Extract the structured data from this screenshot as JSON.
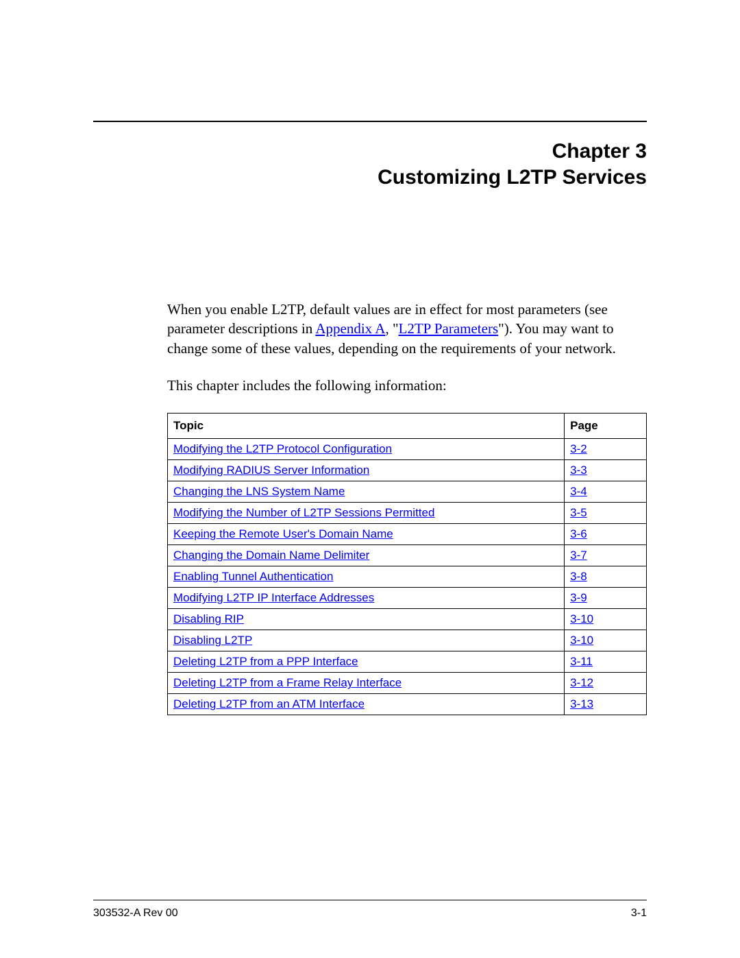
{
  "heading": {
    "chapter_label": "Chapter 3",
    "title": "Customizing L2TP Services"
  },
  "intro": {
    "paragraph_before_link1": "When you enable L2TP, default values are in effect for most parameters (see parameter descriptions in ",
    "link1_text": "Appendix A",
    "between_links": ", \"",
    "link2_text": "L2TP Parameters",
    "paragraph_after_link2": "\"). You may want to change some of these values, depending on the requirements of your network.",
    "paragraph2": "This chapter includes the following information:"
  },
  "toc": {
    "header_topic": "Topic",
    "header_page": "Page",
    "rows": [
      {
        "topic": "Modifying the L2TP Protocol Configuration",
        "page": "3-2"
      },
      {
        "topic": "Modifying RADIUS Server Information",
        "page": "3-3"
      },
      {
        "topic": "Changing the LNS System Name",
        "page": "3-4"
      },
      {
        "topic": "Modifying the Number of L2TP Sessions Permitted",
        "page": "3-5"
      },
      {
        "topic": "Keeping the Remote User's Domain Name",
        "page": "3-6"
      },
      {
        "topic": "Changing the Domain Name Delimiter",
        "page": "3-7"
      },
      {
        "topic": "Enabling Tunnel Authentication",
        "page": "3-8"
      },
      {
        "topic": "Modifying L2TP IP Interface Addresses",
        "page": "3-9"
      },
      {
        "topic": "Disabling RIP",
        "page": "3-10"
      },
      {
        "topic": "Disabling L2TP",
        "page": "3-10"
      },
      {
        "topic": "Deleting L2TP from a PPP Interface",
        "page": "3-11"
      },
      {
        "topic": "Deleting L2TP from a Frame Relay Interface",
        "page": "3-12"
      },
      {
        "topic": "Deleting L2TP from an ATM Interface",
        "page": "3-13"
      }
    ]
  },
  "footer": {
    "doc_ref": "303532-A Rev 00",
    "page_num": "3-1"
  },
  "colors": {
    "link": "#0000ee",
    "text": "#000000",
    "background": "#ffffff"
  }
}
